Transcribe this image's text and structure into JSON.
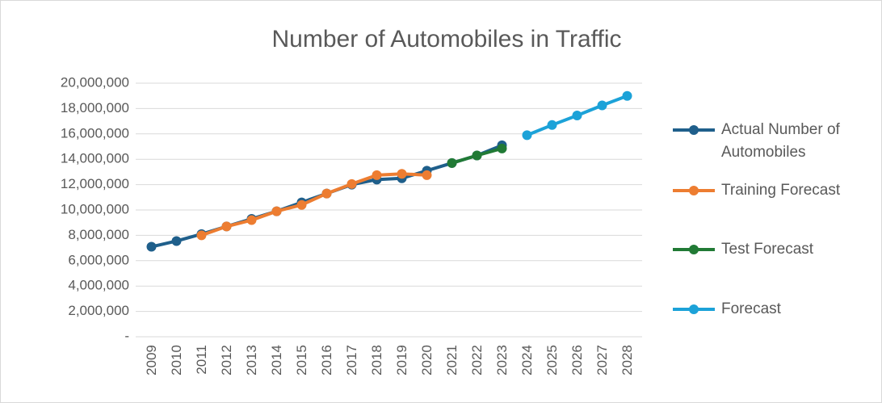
{
  "chart_data": {
    "type": "line",
    "title": "Number of Automobiles in Traffic",
    "categories": [
      "2009",
      "2010",
      "2011",
      "2012",
      "2013",
      "2014",
      "2015",
      "2016",
      "2017",
      "2018",
      "2019",
      "2020",
      "2021",
      "2022",
      "2023",
      "2024",
      "2025",
      "2026",
      "2027",
      "2028"
    ],
    "series": [
      {
        "name": "Actual Number of Automobiles",
        "color": "#1f5f8b",
        "values": [
          7100000,
          7550000,
          8100000,
          8700000,
          9300000,
          9900000,
          10600000,
          11300000,
          12000000,
          12400000,
          12500000,
          13100000,
          13700000,
          14300000,
          15100000,
          null,
          null,
          null,
          null,
          null
        ]
      },
      {
        "name": "Training Forecast",
        "color": "#ed7d31",
        "values": [
          null,
          null,
          8000000,
          8700000,
          9200000,
          9900000,
          10400000,
          11300000,
          12050000,
          12750000,
          12850000,
          12750000,
          null,
          null,
          null,
          null,
          null,
          null,
          null,
          null
        ]
      },
      {
        "name": "Test Forecast",
        "color": "#217a35",
        "values": [
          null,
          null,
          null,
          null,
          null,
          null,
          null,
          null,
          null,
          null,
          null,
          null,
          13700000,
          14300000,
          14850000,
          null,
          null,
          null,
          null,
          null
        ]
      },
      {
        "name": "Forecast",
        "color": "#1ca2d8",
        "values": [
          null,
          null,
          null,
          null,
          null,
          null,
          null,
          null,
          null,
          null,
          null,
          null,
          null,
          null,
          null,
          15900000,
          16700000,
          17450000,
          18250000,
          19000000
        ]
      }
    ],
    "ylim": [
      0,
      20000000
    ],
    "yticks": [
      {
        "value": 0,
        "label": "-"
      },
      {
        "value": 2000000,
        "label": "2,000,000"
      },
      {
        "value": 4000000,
        "label": "4,000,000"
      },
      {
        "value": 6000000,
        "label": "6,000,000"
      },
      {
        "value": 8000000,
        "label": "8,000,000"
      },
      {
        "value": 10000000,
        "label": "10,000,000"
      },
      {
        "value": 12000000,
        "label": "12,000,000"
      },
      {
        "value": 14000000,
        "label": "14,000,000"
      },
      {
        "value": 16000000,
        "label": "16,000,000"
      },
      {
        "value": 18000000,
        "label": "18,000,000"
      },
      {
        "value": 20000000,
        "label": "20,000,000"
      }
    ],
    "grid": true,
    "legend": "right"
  }
}
